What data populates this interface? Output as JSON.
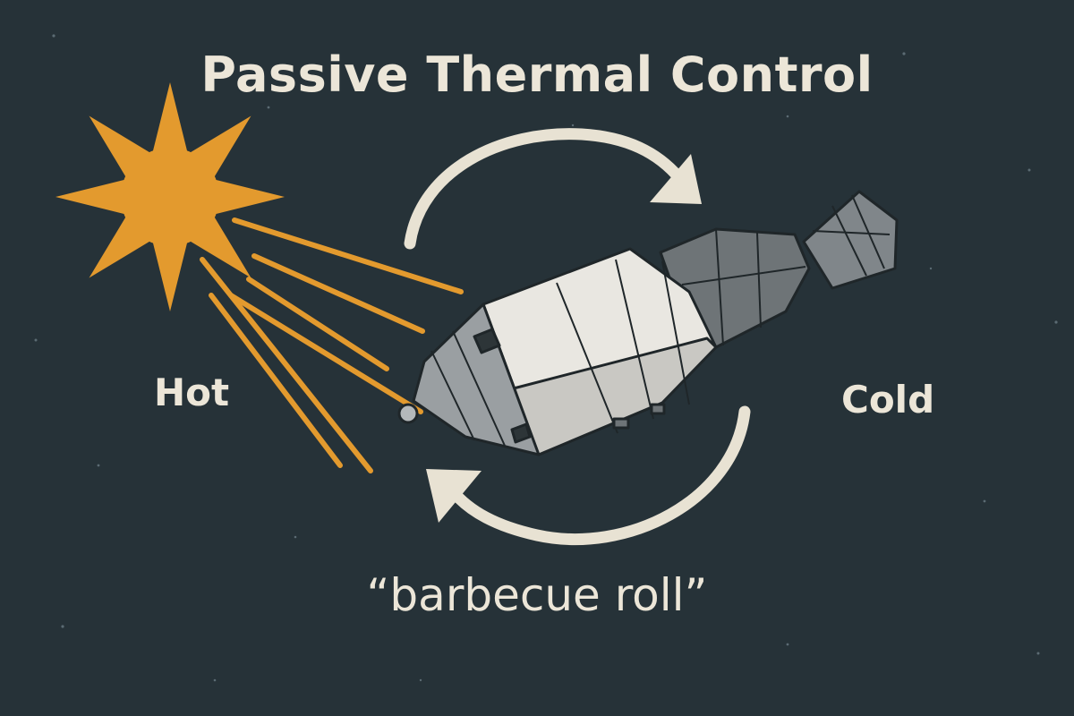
{
  "title": "Passive Thermal Control",
  "labels": {
    "hot": "Hot",
    "cold": "Cold"
  },
  "caption": "“barbecue roll”",
  "icons": {
    "sun": "sun-icon",
    "spacecraft": "spacecraft-icon",
    "rotation_arrows": "rotation-arrow-icon"
  },
  "colors": {
    "background": "#263238",
    "sun": "#e39a2e",
    "text": "#ece6d8",
    "arrows": "#e8e2d3",
    "hull_light": "#e9e7e1",
    "hull_dark": "#8c9092"
  }
}
